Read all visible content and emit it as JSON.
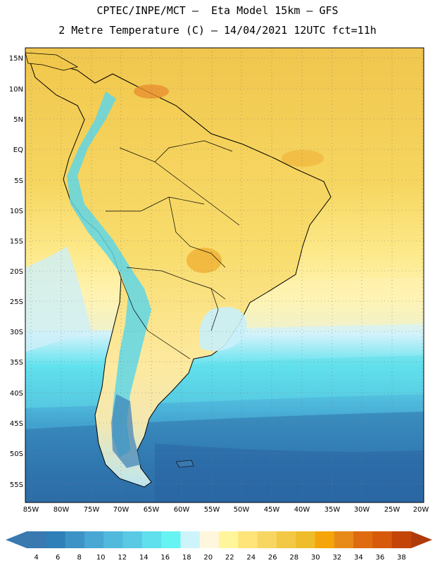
{
  "title_line1": "CPTEC/INPE/MCT –  Eta Model 15km – GFS",
  "title_line2": "2 Metre Temperature (C) – 14/04/2021 12UTC fct=11h",
  "latitude_labels": [
    "15N",
    "10N",
    "5N",
    "EQ",
    "5S",
    "10S",
    "15S",
    "20S",
    "25S",
    "30S",
    "35S",
    "40S",
    "45S",
    "50S",
    "55S"
  ],
  "longitude_labels": [
    "85W",
    "80W",
    "75W",
    "70W",
    "65W",
    "60W",
    "55W",
    "50W",
    "45W",
    "40W",
    "35W",
    "30W",
    "25W",
    "20W"
  ],
  "colorbar": {
    "ticks": [
      "4",
      "6",
      "8",
      "10",
      "12",
      "14",
      "16",
      "18",
      "20",
      "22",
      "24",
      "26",
      "28",
      "30",
      "32",
      "34",
      "36",
      "38"
    ],
    "colors": [
      "#3a78b0",
      "#2f7fb8",
      "#3d93c6",
      "#48a7d3",
      "#50b9dc",
      "#5ac9e4",
      "#5fe0ec",
      "#66f4f2",
      "#cdf3fb",
      "#fff6dc",
      "#fff59a",
      "#ffe47a",
      "#f8d662",
      "#f2c845",
      "#efbd2a",
      "#f5a50a",
      "#e88a18",
      "#de6b10",
      "#d65a0a",
      "#c34608"
    ],
    "under_color": "#3a78b0",
    "over_color": "#b13a0a"
  }
}
